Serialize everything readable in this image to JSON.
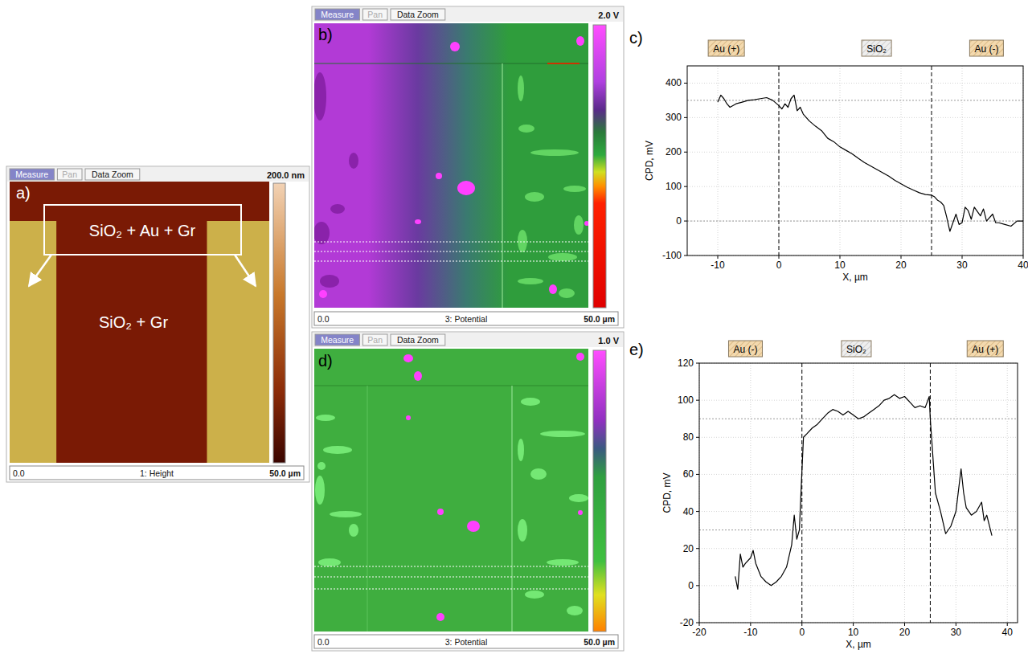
{
  "images": [
    {
      "title": "a)",
      "toolbar": [
        "Measure",
        "Pan",
        "Data Zoom"
      ],
      "scale": "200.0 nm",
      "start": "0.0",
      "channel": "1: Height",
      "end": "50.0 µm",
      "annotations": [
        "SiO₂ + Au + Gr",
        "SiO₂ + Gr"
      ]
    },
    {
      "title": "b)",
      "toolbar": [
        "Measure",
        "Pan",
        "Data Zoom"
      ],
      "scale": "2.0 V",
      "start": "0.0",
      "channel": "3: Potential",
      "end": "50.0 µm"
    },
    {
      "title": "d)",
      "toolbar": [
        "Measure",
        "Pan",
        "Data Zoom"
      ],
      "scale": "1.0 V",
      "start": "0.0",
      "channel": "3: Potential",
      "end": "50.0 µm"
    }
  ],
  "chart_data": [
    {
      "type": "line",
      "title": "c)",
      "x_label": "X, µm",
      "y_label": "CPD, mV",
      "color": "#000000",
      "grid": true,
      "x": [
        -10,
        -9.5,
        -9,
        -8.5,
        -8,
        -7,
        -6,
        -5,
        -4,
        -3,
        -2,
        -1,
        0,
        0.5,
        1,
        1.5,
        2,
        2.5,
        3,
        3.5,
        4,
        5,
        6,
        7,
        8,
        9,
        10,
        11,
        12,
        13,
        14,
        15,
        16,
        17,
        18,
        19,
        20,
        21,
        22,
        23,
        24,
        25,
        25.5,
        26,
        26.5,
        27,
        27.5,
        28,
        28.5,
        29,
        29.5,
        30,
        30.5,
        31,
        31.5,
        32,
        33,
        33.5,
        34,
        35,
        35.5,
        36,
        37,
        38,
        39,
        40
      ],
      "values": [
        345,
        365,
        355,
        340,
        330,
        340,
        345,
        350,
        352,
        355,
        358,
        350,
        335,
        325,
        340,
        330,
        355,
        365,
        320,
        330,
        310,
        290,
        275,
        262,
        240,
        230,
        215,
        205,
        195,
        182,
        170,
        160,
        150,
        140,
        130,
        118,
        108,
        98,
        90,
        82,
        77,
        75,
        70,
        60,
        55,
        45,
        10,
        -30,
        -5,
        20,
        -10,
        -5,
        40,
        30,
        5,
        40,
        15,
        35,
        0,
        20,
        -5,
        -5,
        -10,
        -15,
        0,
        0
      ],
      "xlim": [
        -15,
        40
      ],
      "xticks": [
        -10,
        0,
        10,
        20,
        30,
        40
      ],
      "ylim": [
        -100,
        450
      ],
      "yticks": [
        -100,
        0,
        100,
        200,
        300,
        400
      ],
      "annotations": [
        {
          "text": "Au (+)",
          "x": -8.6
        },
        {
          "text": "SiO₂",
          "x": 16
        },
        {
          "text": "Au (-)",
          "x": 34
        }
      ],
      "reference_lines": {
        "x": [
          0,
          25
        ],
        "y": [
          350,
          0
        ]
      }
    },
    {
      "type": "line",
      "title": "e)",
      "x_label": "X, µm",
      "y_label": "CPD, mV",
      "color": "#000000",
      "grid": true,
      "x": [
        -13,
        -12.5,
        -12,
        -11.5,
        -11,
        -10,
        -9.5,
        -9,
        -8,
        -7,
        -6,
        -5,
        -4,
        -3,
        -2,
        -1.5,
        -1,
        -0.5,
        0,
        0.3,
        1,
        2,
        3,
        4,
        5,
        6,
        7,
        8,
        9,
        10,
        11,
        12,
        13,
        14,
        15,
        16,
        17,
        18,
        19,
        20,
        21,
        22,
        23,
        24,
        24.8,
        25,
        25.5,
        26,
        27,
        28,
        29,
        30,
        31,
        31.5,
        32,
        33,
        34,
        35,
        35.5,
        36,
        37
      ],
      "values": [
        5,
        -2,
        17,
        10,
        12,
        15,
        19,
        12,
        5,
        2,
        0,
        2,
        5,
        10,
        22,
        38,
        25,
        30,
        62,
        80,
        82,
        85,
        87,
        90,
        93,
        95,
        94,
        92,
        94,
        92,
        90,
        91,
        93,
        95,
        97,
        100,
        101,
        103,
        101,
        102,
        99,
        96,
        97,
        96,
        102,
        90,
        70,
        50,
        40,
        28,
        32,
        40,
        63,
        50,
        42,
        38,
        40,
        45,
        35,
        38,
        27
      ],
      "xlim": [
        -20,
        42
      ],
      "xticks": [
        -20,
        -10,
        0,
        10,
        20,
        30,
        40
      ],
      "ylim": [
        -20,
        120
      ],
      "yticks": [
        -20,
        0,
        20,
        40,
        60,
        80,
        100,
        120
      ],
      "annotations": [
        {
          "text": "Au (-)",
          "x": -11
        },
        {
          "text": "SiO₂",
          "x": 10.6
        },
        {
          "text": "Au (+)",
          "x": 35.7
        }
      ],
      "reference_lines": {
        "x": [
          0,
          25
        ],
        "y": [
          90,
          30
        ]
      }
    }
  ]
}
